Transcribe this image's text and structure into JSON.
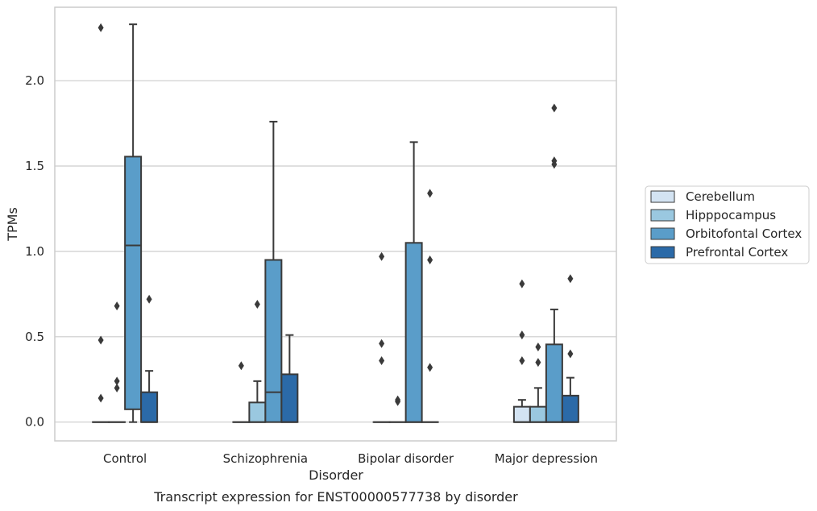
{
  "caption": "Transcript expression for ENST00000577738 by disorder",
  "chart_data": {
    "type": "box",
    "xlabel": "Disorder",
    "ylabel": "TPMs",
    "ylim": [
      -0.11,
      2.43
    ],
    "yticks": [
      0.0,
      0.5,
      1.0,
      1.5,
      2.0
    ],
    "ytick_labels": [
      "0.0",
      "0.5",
      "1.0",
      "1.5",
      "2.0"
    ],
    "grid": "horizontal",
    "legend_position": "right",
    "categories": [
      "Control",
      "Schizophrenia",
      "Bipolar disorder",
      "Major depression"
    ],
    "series": [
      {
        "name": "Cerebellum",
        "color": "#d3e3f2",
        "boxes": [
          {
            "q1": 0,
            "median": 0,
            "q3": 0,
            "whisker_low": 0,
            "whisker_high": 0,
            "outliers": [
              2.31,
              0.48,
              0.14
            ]
          },
          {
            "q1": 0,
            "median": 0,
            "q3": 0,
            "whisker_low": 0,
            "whisker_high": 0,
            "outliers": [
              0.33
            ]
          },
          {
            "q1": 0,
            "median": 0,
            "q3": 0,
            "whisker_low": 0,
            "whisker_high": 0,
            "outliers": [
              0.97,
              0.46,
              0.36
            ]
          },
          {
            "q1": 0,
            "median": 0,
            "q3": 0.09,
            "whisker_low": 0,
            "whisker_high": 0.13,
            "outliers": [
              0.81,
              0.51,
              0.36
            ]
          }
        ]
      },
      {
        "name": "Hipppocampus",
        "color": "#9ac8e0",
        "boxes": [
          {
            "q1": 0,
            "median": 0,
            "q3": 0,
            "whisker_low": 0,
            "whisker_high": 0,
            "outliers": [
              0.68,
              0.24,
              0.2
            ]
          },
          {
            "q1": 0,
            "median": 0,
            "q3": 0.115,
            "whisker_low": 0,
            "whisker_high": 0.24,
            "outliers": [
              0.69
            ]
          },
          {
            "q1": 0,
            "median": 0,
            "q3": 0,
            "whisker_low": 0,
            "whisker_high": 0,
            "outliers": [
              0.13,
              0.12
            ]
          },
          {
            "q1": 0,
            "median": 0,
            "q3": 0.09,
            "whisker_low": 0,
            "whisker_high": 0.2,
            "outliers": [
              0.44,
              0.35
            ]
          }
        ]
      },
      {
        "name": "Orbitofontal Cortex",
        "color": "#5a9dc9",
        "boxes": [
          {
            "q1": 0.075,
            "median": 1.035,
            "q3": 1.555,
            "whisker_low": 0,
            "whisker_high": 2.33,
            "outliers": []
          },
          {
            "q1": 0,
            "median": 0.175,
            "q3": 0.95,
            "whisker_low": 0,
            "whisker_high": 1.76,
            "outliers": []
          },
          {
            "q1": 0,
            "median": 0,
            "q3": 1.05,
            "whisker_low": 0,
            "whisker_high": 1.64,
            "outliers": []
          },
          {
            "q1": 0,
            "median": 0,
            "q3": 0.455,
            "whisker_low": 0,
            "whisker_high": 0.66,
            "outliers": [
              1.84,
              1.53,
              1.51
            ]
          }
        ]
      },
      {
        "name": "Prefrontal Cortex",
        "color": "#2b6aa8",
        "boxes": [
          {
            "q1": 0,
            "median": 0,
            "q3": 0.175,
            "whisker_low": 0,
            "whisker_high": 0.3,
            "outliers": [
              0.72
            ]
          },
          {
            "q1": 0,
            "median": 0,
            "q3": 0.28,
            "whisker_low": 0,
            "whisker_high": 0.51,
            "outliers": []
          },
          {
            "q1": 0,
            "median": 0,
            "q3": 0,
            "whisker_low": 0,
            "whisker_high": 0,
            "outliers": [
              1.34,
              0.95,
              0.32
            ]
          },
          {
            "q1": 0,
            "median": 0,
            "q3": 0.155,
            "whisker_low": 0,
            "whisker_high": 0.26,
            "outliers": [
              0.84,
              0.4
            ]
          }
        ]
      }
    ]
  }
}
